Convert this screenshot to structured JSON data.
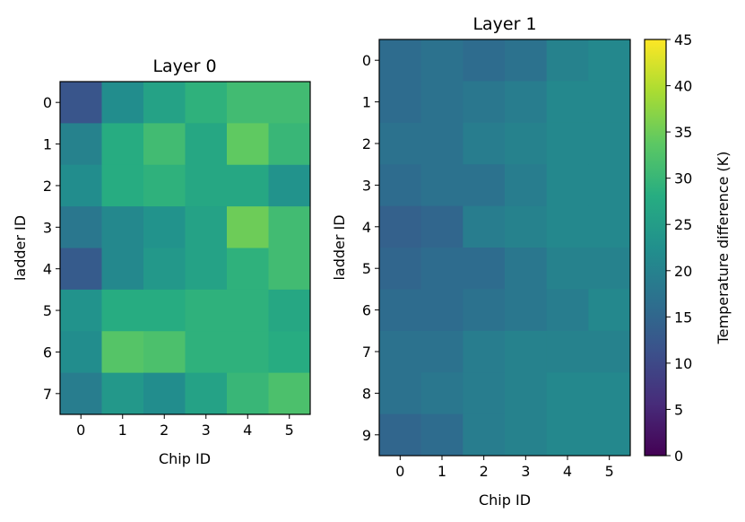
{
  "chart_data": [
    {
      "type": "heatmap",
      "title": "Layer 0",
      "xlabel": "Chip ID",
      "ylabel": "ladder ID",
      "x_ticks": [
        "0",
        "1",
        "2",
        "3",
        "4",
        "5"
      ],
      "y_ticks": [
        "0",
        "1",
        "2",
        "3",
        "4",
        "5",
        "6",
        "7"
      ],
      "values": [
        [
          12,
          22,
          26,
          29,
          31,
          31
        ],
        [
          20,
          28,
          31,
          27,
          34,
          30
        ],
        [
          22,
          28,
          29,
          27,
          27,
          23
        ],
        [
          18,
          21,
          23,
          26,
          35,
          31
        ],
        [
          13,
          21,
          24,
          26,
          29,
          31
        ],
        [
          23,
          28,
          28,
          29,
          29,
          27
        ],
        [
          22,
          33,
          32,
          29,
          29,
          28
        ],
        [
          19,
          24,
          22,
          26,
          30,
          32
        ]
      ]
    },
    {
      "type": "heatmap",
      "title": "Layer 1",
      "xlabel": "Chip ID",
      "ylabel": "ladder ID",
      "x_ticks": [
        "0",
        "1",
        "2",
        "3",
        "4",
        "5"
      ],
      "y_ticks": [
        "0",
        "1",
        "2",
        "3",
        "4",
        "5",
        "6",
        "7",
        "8",
        "9"
      ],
      "values": [
        [
          16,
          17,
          16,
          17,
          20,
          21
        ],
        [
          16,
          17,
          18,
          19,
          21,
          21
        ],
        [
          17,
          17,
          19,
          20,
          21,
          21
        ],
        [
          16,
          17,
          17,
          19,
          21,
          21
        ],
        [
          14,
          15,
          19,
          20,
          21,
          21
        ],
        [
          15,
          16,
          16,
          18,
          20,
          20
        ],
        [
          16,
          16,
          17,
          18,
          19,
          21
        ],
        [
          17,
          17,
          19,
          20,
          20,
          20
        ],
        [
          17,
          18,
          19,
          20,
          21,
          21
        ],
        [
          15,
          16,
          19,
          20,
          21,
          21
        ]
      ]
    }
  ],
  "colorbar": {
    "label": "Temperature difference (K)",
    "min": 0,
    "max": 45,
    "ticks": [
      "0",
      "5",
      "10",
      "15",
      "20",
      "25",
      "30",
      "35",
      "40",
      "45"
    ],
    "colormap": "viridis"
  }
}
